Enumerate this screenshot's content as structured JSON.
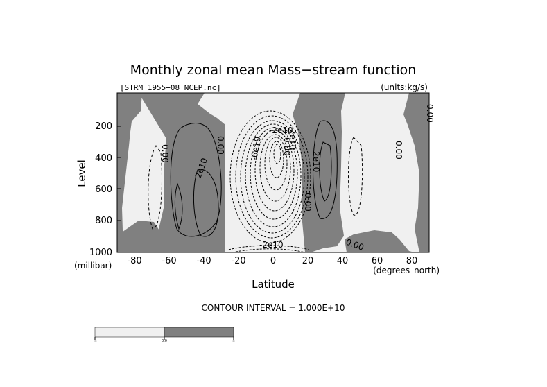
{
  "chart_data": {
    "type": "heatmap",
    "title": "Monthly zonal mean Mass−stream function",
    "subtitle_left": "[STRM_1955−08_NCEP.nc]",
    "subtitle_right": "(units:kg/s)",
    "xlabel": "Latitude",
    "x_units": "(degrees_north)",
    "ylabel": "Level",
    "y_units": "(millibar)",
    "xlim": [
      -90,
      90
    ],
    "ylim": [
      1000,
      50
    ],
    "x_ticks": [
      "-80",
      "-60",
      "-40",
      "-20",
      "0",
      "20",
      "40",
      "60",
      "80"
    ],
    "y_ticks": [
      "200",
      "400",
      "600",
      "800",
      "1000"
    ],
    "contour_interval": "CONTOUR INTERVAL = 1.000E+10",
    "contour_labels": [
      "0.00",
      "0.00",
      "0.00",
      "2e10",
      "2e10",
      "-6e10",
      "-2e10",
      "0.00",
      "-2e10",
      "2e10",
      "0.00",
      "0.00",
      "0.00"
    ],
    "fill_colors": {
      "negative": "#f0f0f0",
      "positive": "#808080"
    },
    "colorbar_labels": [
      "-∞",
      "0.0",
      "∞"
    ],
    "cells": [
      {
        "lat_min": -90,
        "lat_max": -82,
        "sign": "positive"
      },
      {
        "lat_min": -82,
        "lat_max": -62,
        "sign": "negative"
      },
      {
        "lat_min": -62,
        "lat_max": -29,
        "sign": "positive"
      },
      {
        "lat_min": -29,
        "lat_max": 17,
        "sign": "negative"
      },
      {
        "lat_min": 17,
        "lat_max": 39,
        "sign": "positive"
      },
      {
        "lat_min": 39,
        "lat_max": 73,
        "sign": "negative"
      },
      {
        "lat_min": 73,
        "lat_max": 90,
        "sign": "positive"
      }
    ]
  }
}
